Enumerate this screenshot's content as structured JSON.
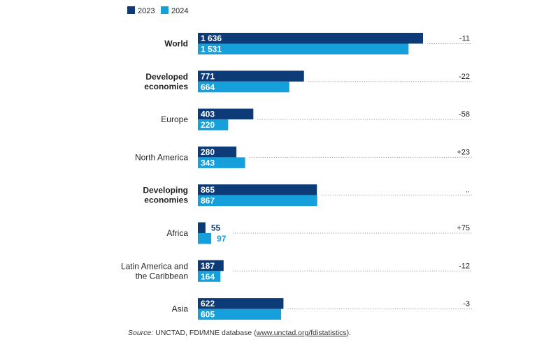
{
  "chart_data": {
    "type": "bar",
    "orientation": "horizontal",
    "categories": [
      {
        "label": [
          "World"
        ],
        "bold": true
      },
      {
        "label": [
          "Developed",
          "economies"
        ],
        "bold": true
      },
      {
        "label": [
          "Europe"
        ],
        "bold": false
      },
      {
        "label": [
          "North America"
        ],
        "bold": false
      },
      {
        "label": [
          "Developing",
          "economies"
        ],
        "bold": true
      },
      {
        "label": [
          "Africa"
        ],
        "bold": false
      },
      {
        "label": [
          "Latin America and",
          "the Caribbean"
        ],
        "bold": false
      },
      {
        "label": [
          "Asia"
        ],
        "bold": false
      }
    ],
    "series": [
      {
        "name": "2023",
        "color": "#0d3b78",
        "values": [
          1636,
          771,
          403,
          280,
          865,
          55,
          187,
          622
        ],
        "labels": [
          "1 636",
          "771",
          "403",
          "280",
          "865",
          "55",
          "187",
          "622"
        ]
      },
      {
        "name": "2024",
        "color": "#16a0db",
        "values": [
          1531,
          664,
          220,
          343,
          867,
          97,
          164,
          605
        ],
        "labels": [
          "1 531",
          "664",
          "220",
          "343",
          "867",
          "97",
          "164",
          "605"
        ]
      }
    ],
    "growth": [
      "-11",
      "-22",
      "-58",
      "+23",
      "..",
      "+75",
      "-12",
      "-3"
    ],
    "xlim": [
      0,
      1636
    ],
    "legend_position": "top-left",
    "grid": false
  },
  "source": {
    "prefix": "Source:",
    "text": "UNCTAD, FDI/MNE database (",
    "link": "www.unctad.org/fdistatistics",
    "suffix": ")."
  }
}
